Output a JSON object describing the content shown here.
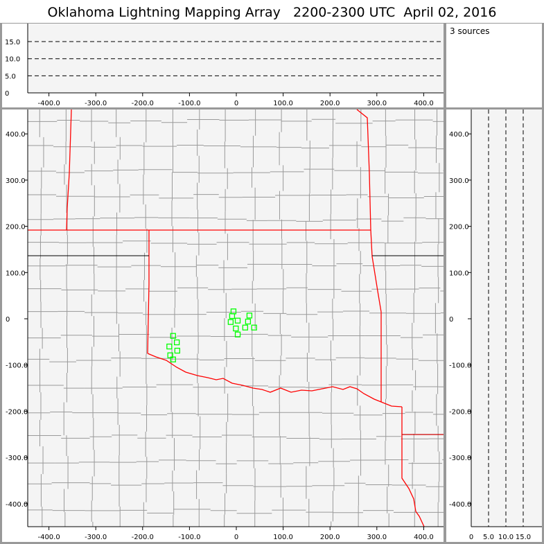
{
  "title": "Oklahoma Lightning Mapping Array   2200-2300 UTC  April 02, 2016",
  "info": {
    "source_count": "3 sources"
  },
  "colors": {
    "background": "#999999",
    "panel": "#f4f4f4",
    "county": "#999999",
    "state_border": "#ff0000",
    "source_marker": "#00ff00"
  },
  "chart_data": [
    {
      "type": "scatter",
      "panel": "altitude-vs-east-west",
      "xlim": [
        -450,
        450
      ],
      "ylim": [
        0,
        20
      ],
      "xticks": [
        "-400.0",
        "-300.0",
        "-200.0",
        "-100.0",
        "0",
        "100.0",
        "200.0",
        "300.0",
        "400.0"
      ],
      "xtick_values": [
        -400,
        -300,
        -200,
        -100,
        0,
        100,
        200,
        300,
        400
      ],
      "yticks": [
        "0",
        "5.0",
        "10.0",
        "15.0"
      ],
      "ytick_values": [
        0,
        5,
        10,
        15
      ],
      "gridlines_dashed": [
        5,
        10,
        15
      ],
      "points": []
    },
    {
      "type": "scatter",
      "panel": "plan-view-map",
      "xlim": [
        -450,
        450
      ],
      "ylim": [
        -450,
        450
      ],
      "xticks": [
        "-400.0",
        "-300.0",
        "-200.0",
        "-100.0",
        "0",
        "100.0",
        "200.0",
        "300.0",
        "400.0"
      ],
      "xtick_values": [
        -400,
        -300,
        -200,
        -100,
        0,
        100,
        200,
        300,
        400
      ],
      "yticks": [
        "400.0",
        "300.0",
        "200.0",
        "100.0",
        "0",
        "-100.0",
        "-200.0",
        "-300.0",
        "-400.0"
      ],
      "ytick_values": [
        400,
        300,
        200,
        100,
        0,
        -100,
        -200,
        -300,
        -400
      ],
      "marker": "hollow-square",
      "points": [
        {
          "x": -6,
          "y": 16
        },
        {
          "x": -9,
          "y": 6
        },
        {
          "x": 28,
          "y": 7
        },
        {
          "x": -12,
          "y": -7
        },
        {
          "x": 3,
          "y": -4
        },
        {
          "x": 25,
          "y": -6
        },
        {
          "x": -1,
          "y": -21
        },
        {
          "x": 19,
          "y": -19
        },
        {
          "x": 38,
          "y": -19
        },
        {
          "x": 3,
          "y": -34
        },
        {
          "x": -135,
          "y": -37
        },
        {
          "x": -127,
          "y": -51
        },
        {
          "x": -143,
          "y": -60
        },
        {
          "x": -126,
          "y": -69
        },
        {
          "x": -141,
          "y": -79
        },
        {
          "x": -135,
          "y": -88
        }
      ]
    },
    {
      "type": "scatter",
      "panel": "north-south-vs-altitude",
      "xlim": [
        0,
        20
      ],
      "ylim": [
        -450,
        450
      ],
      "xticks": [
        "0",
        "5.0",
        "10.0",
        "15.0"
      ],
      "xtick_values": [
        0,
        5,
        10,
        15
      ],
      "yticks": [
        "400.0",
        "300.0",
        "200.0",
        "100.0",
        "0",
        "-100.0",
        "-200.0",
        "-300.0",
        "-400.0"
      ],
      "ytick_values": [
        400,
        300,
        200,
        100,
        0,
        -100,
        -200,
        -300,
        -400
      ],
      "gridlines_dashed": [
        5,
        10,
        15
      ],
      "points": []
    }
  ]
}
